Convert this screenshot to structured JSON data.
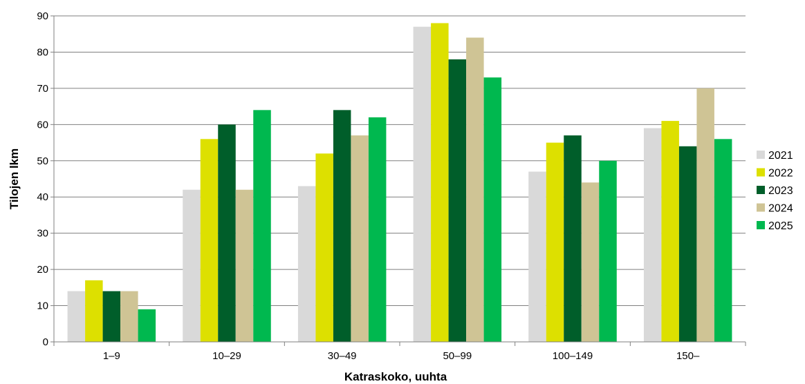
{
  "chart_data": {
    "type": "bar",
    "title": "",
    "xlabel": "Katraskoko, uuhta",
    "ylabel": "Tilojen lkm",
    "ylim": [
      0,
      90
    ],
    "yticks": [
      0,
      10,
      20,
      30,
      40,
      50,
      60,
      70,
      80,
      90
    ],
    "grid": true,
    "legend_position": "right",
    "categories": [
      "1–9",
      "10–29",
      "30–49",
      "50–99",
      "100–149",
      "150–"
    ],
    "series": [
      {
        "name": "2021",
        "color": "#d9d9d9",
        "values": [
          14,
          42,
          43,
          87,
          47,
          59
        ]
      },
      {
        "name": "2022",
        "color": "#dde000",
        "values": [
          17,
          56,
          52,
          88,
          55,
          61
        ]
      },
      {
        "name": "2023",
        "color": "#005e2a",
        "values": [
          14,
          60,
          64,
          78,
          57,
          54
        ]
      },
      {
        "name": "2024",
        "color": "#cfc495",
        "values": [
          14,
          42,
          57,
          84,
          44,
          70
        ]
      },
      {
        "name": "2025",
        "color": "#00b84f",
        "values": [
          9,
          64,
          62,
          73,
          50,
          56
        ]
      }
    ]
  }
}
